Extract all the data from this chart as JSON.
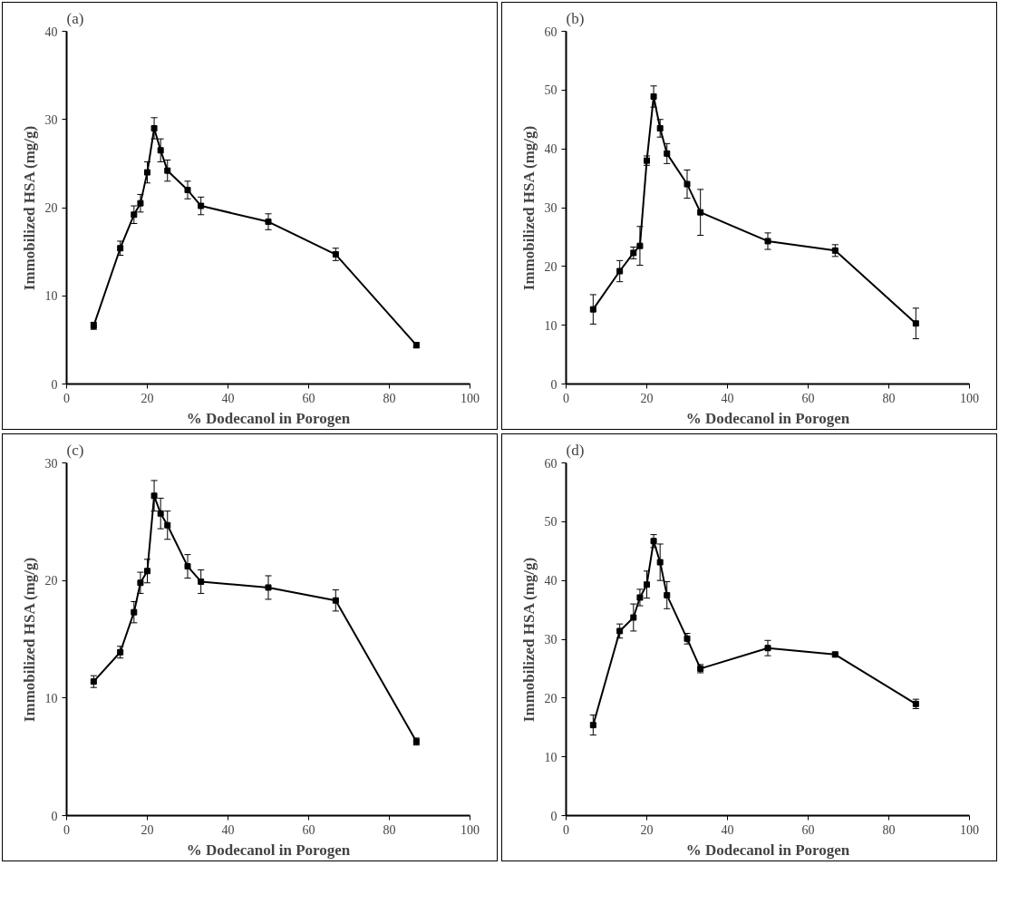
{
  "chart_data": [
    {
      "type": "line",
      "title": "(a)",
      "xlabel": "% Dodecanol in Porogen",
      "ylabel": "Immobilized HSA (mg/g)",
      "x": [
        6.7,
        13.3,
        16.7,
        18.3,
        20,
        21.7,
        23.3,
        25,
        30,
        33.3,
        50,
        66.7,
        86.7
      ],
      "values": [
        6.6,
        15.4,
        19.2,
        20.5,
        24,
        29,
        26.5,
        24.2,
        22,
        20.2,
        18.4,
        14.7,
        4.4
      ],
      "errors": [
        0.4,
        0.8,
        1,
        1,
        1.2,
        1.2,
        1.3,
        1.2,
        1,
        1,
        0.9,
        0.7,
        0.3
      ],
      "color": "#000000",
      "marker": "square",
      "xlim": [
        0,
        100
      ],
      "xticks": [
        0,
        20,
        40,
        60,
        80,
        100
      ],
      "ylim": [
        0,
        40
      ],
      "yticks": [
        0,
        10,
        20,
        30,
        40
      ]
    },
    {
      "type": "line",
      "title": "(b)",
      "xlabel": "% Dodecanol in Porogen",
      "ylabel": "Immobilized HSA (mg/g)",
      "x": [
        6.7,
        13.3,
        16.7,
        18.3,
        20,
        21.7,
        23.3,
        25,
        30,
        33.3,
        50,
        66.7,
        86.7
      ],
      "values": [
        12.7,
        19.2,
        22.3,
        23.5,
        38,
        48.9,
        43.5,
        39.2,
        34,
        29.2,
        24.3,
        22.7,
        10.3
      ],
      "errors": [
        2.5,
        1.8,
        1,
        3.3,
        0.8,
        1.8,
        1.5,
        1.7,
        2.4,
        3.9,
        1.4,
        1,
        2.6
      ],
      "color": "#000000",
      "marker": "square",
      "xlim": [
        0,
        100
      ],
      "xticks": [
        0,
        20,
        40,
        60,
        80,
        100
      ],
      "ylim": [
        0,
        60
      ],
      "yticks": [
        0,
        10,
        20,
        30,
        40,
        50,
        60
      ]
    },
    {
      "type": "line",
      "title": "(c)",
      "xlabel": "% Dodecanol in Porogen",
      "ylabel": "Immobilized HSA (mg/g)",
      "x": [
        6.7,
        13.3,
        16.7,
        18.3,
        20,
        21.7,
        23.3,
        25,
        30,
        33.3,
        50,
        66.7,
        86.7
      ],
      "values": [
        11.4,
        13.9,
        17.3,
        19.8,
        20.8,
        27.2,
        25.7,
        24.7,
        21.2,
        19.9,
        19.4,
        18.3,
        6.3
      ],
      "errors": [
        0.5,
        0.5,
        0.9,
        0.9,
        1,
        1.3,
        1.3,
        1.2,
        1,
        1,
        1,
        0.9,
        0.3
      ],
      "color": "#000000",
      "marker": "square",
      "xlim": [
        0,
        100
      ],
      "xticks": [
        0,
        20,
        40,
        60,
        80,
        100
      ],
      "ylim": [
        0,
        30
      ],
      "yticks": [
        0,
        10,
        20,
        30
      ]
    },
    {
      "type": "line",
      "title": "(d)",
      "xlabel": "% Dodecanol in Porogen",
      "ylabel": "Immobilized HSA (mg/g)",
      "x": [
        6.7,
        13.3,
        16.7,
        18.3,
        20,
        21.7,
        23.3,
        25,
        30,
        33.3,
        50,
        66.7,
        86.7
      ],
      "values": [
        15.4,
        31.4,
        33.7,
        37.1,
        39.3,
        46.7,
        43.1,
        37.5,
        30.1,
        25,
        28.5,
        27.4,
        19
      ],
      "errors": [
        1.7,
        1.2,
        2.3,
        1.4,
        2.3,
        1.1,
        3.1,
        2.3,
        0.9,
        0.7,
        1.3,
        0.4,
        0.8
      ],
      "color": "#000000",
      "marker": "square",
      "xlim": [
        0,
        100
      ],
      "xticks": [
        0,
        20,
        40,
        60,
        80,
        100
      ],
      "ylim": [
        0,
        60
      ],
      "yticks": [
        0,
        10,
        20,
        30,
        40,
        50,
        60
      ]
    }
  ]
}
